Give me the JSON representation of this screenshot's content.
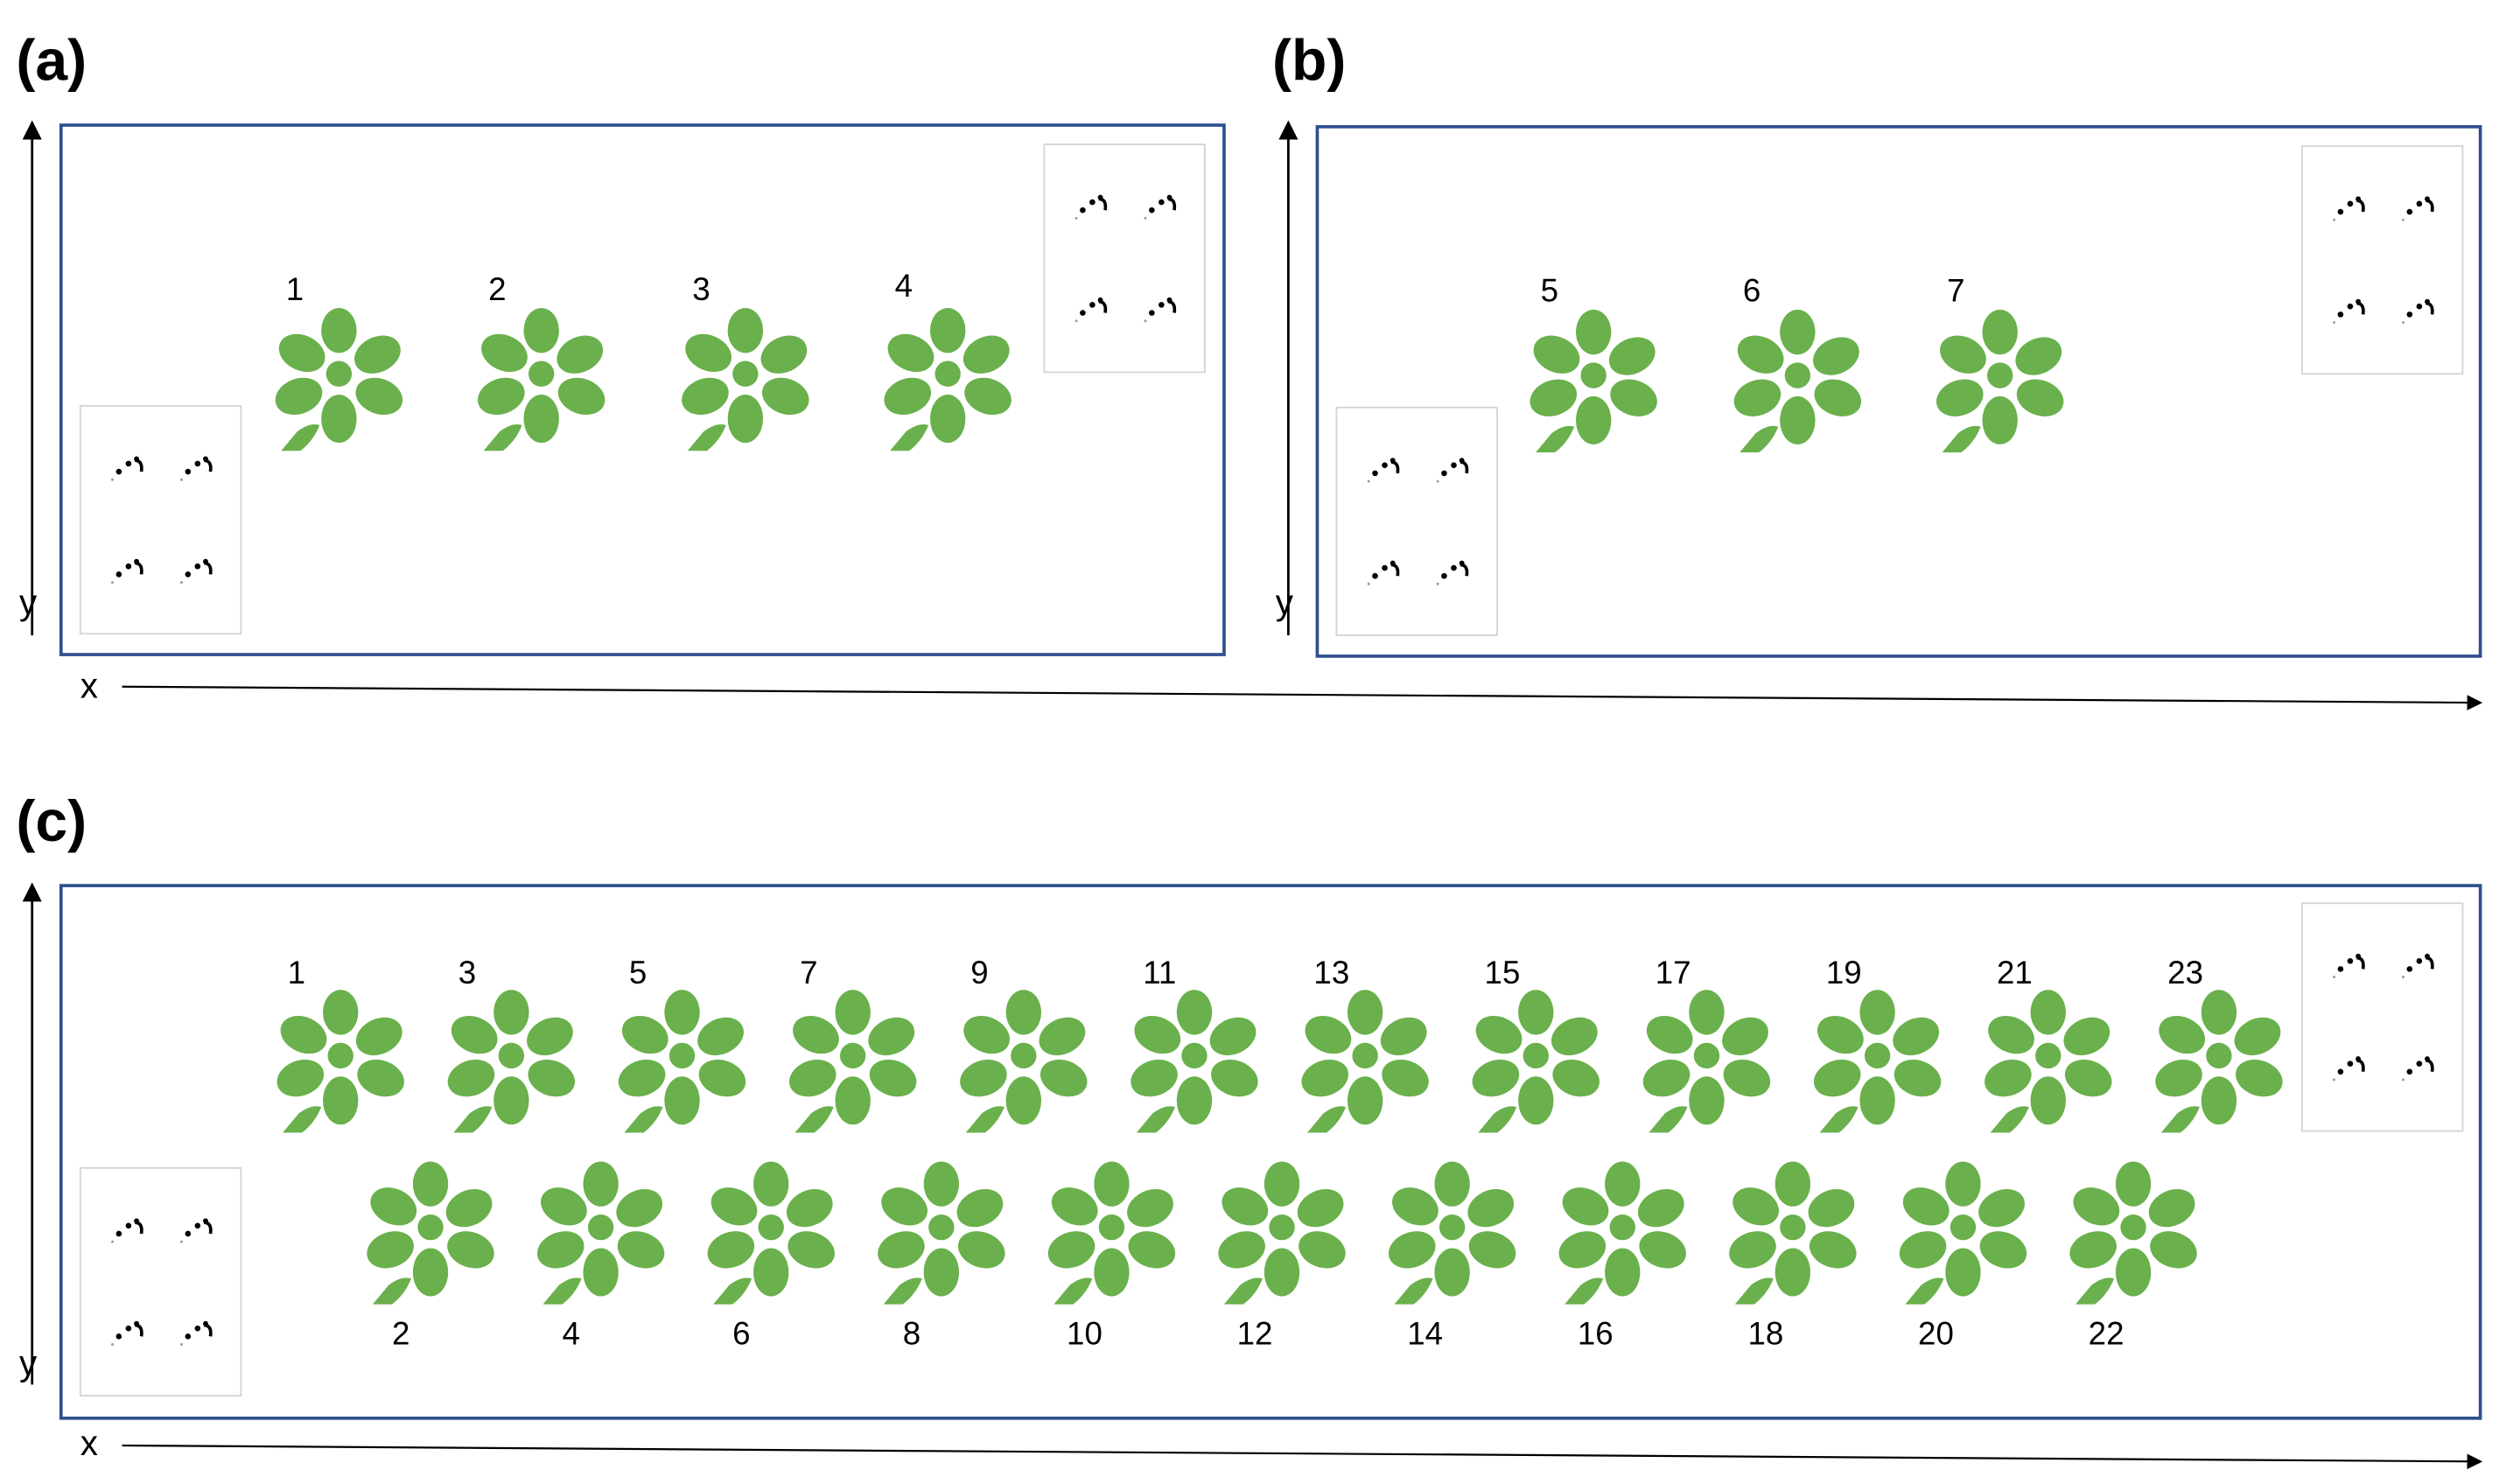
{
  "panels": [
    {
      "label": "(a)",
      "x_axis_label": "x",
      "y_axis_label": "y",
      "plants": [
        {
          "number": "1"
        },
        {
          "number": "2"
        },
        {
          "number": "3"
        },
        {
          "number": "4"
        }
      ],
      "sensor_groups": 2
    },
    {
      "label": "(b)",
      "x_axis_label": "",
      "y_axis_label": "y",
      "plants": [
        {
          "number": "5"
        },
        {
          "number": "6"
        },
        {
          "number": "7"
        }
      ],
      "sensor_groups": 2
    },
    {
      "label": "(c)",
      "x_axis_label": "x",
      "y_axis_label": "y",
      "top_row_plants": [
        "1",
        "3",
        "5",
        "7",
        "9",
        "11",
        "13",
        "15",
        "17",
        "19",
        "21",
        "23"
      ],
      "bottom_row_plants": [
        "2",
        "4",
        "6",
        "8",
        "10",
        "12",
        "14",
        "16",
        "18",
        "20",
        "22"
      ],
      "sensor_groups": 2
    }
  ],
  "colors": {
    "plant": "#6ab04c",
    "frame": "#2f4f8f",
    "sensor_dot": "#000000"
  },
  "icons": {
    "plant": "plant-icon",
    "sensor": "sensor-cluster-icon"
  }
}
